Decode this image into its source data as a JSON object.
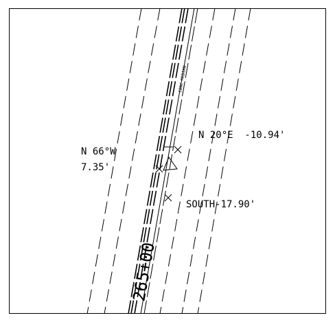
{
  "labels": {
    "median": "CONC MEDIAN",
    "bearing_w_dir": "N 66°W",
    "bearing_w_dist": "7.35'",
    "bearing_e": "N 20°E  -10.94'",
    "south": "SOUTH-17.90'",
    "station": "265+00"
  },
  "colors": {
    "ink": "#000000",
    "background": "#ffffff"
  }
}
